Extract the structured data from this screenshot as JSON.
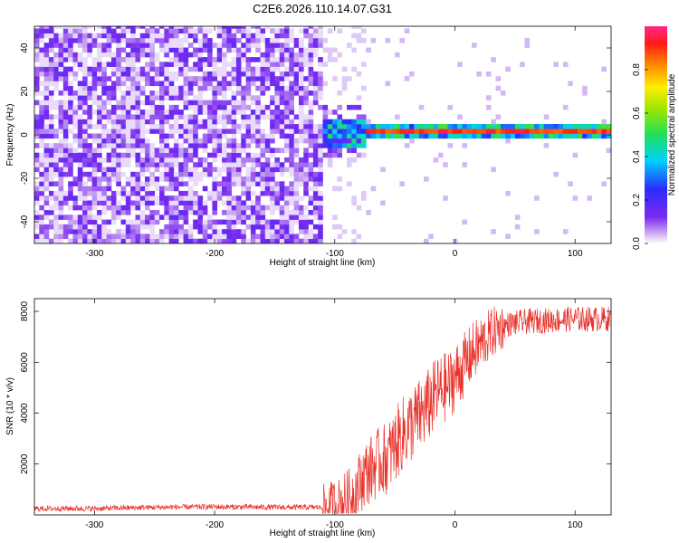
{
  "figure": {
    "title": "C2E6.2026.110.14.07.G31"
  },
  "chart_data": [
    {
      "type": "heatmap",
      "xlabel": "Height of straight line (km)",
      "ylabel": "Frequency (Hz)",
      "xlim": [
        -350,
        130
      ],
      "ylim": [
        -50,
        50
      ],
      "xticks": [
        -300,
        -200,
        -100,
        0,
        100
      ],
      "yticks": [
        -40,
        -20,
        0,
        20,
        40
      ],
      "colorbar": {
        "label": "Normalized spectral amplitude",
        "range": [
          0,
          1
        ],
        "ticks": [
          0.0,
          0.2,
          0.4,
          0.6,
          0.8
        ],
        "tick_labels": [
          "0.0",
          "0.2",
          "0.4",
          "0.6",
          "0.8"
        ]
      },
      "description_regions": [
        {
          "x_from": -350,
          "x_to": -110,
          "content": "broadband noise",
          "amplitude": 0.1
        },
        {
          "x_from": -110,
          "x_to": -75,
          "content": "signal emerging near 0 Hz",
          "amplitude": 0.4
        },
        {
          "x_from": -75,
          "x_to": 130,
          "content": "strong tone at ~0 Hz",
          "amplitude": 1.0
        }
      ]
    },
    {
      "type": "line",
      "xlabel": "Height of straight line (km)",
      "ylabel": "SNR (10 * v/v)",
      "xlim": [
        -350,
        130
      ],
      "ylim": [
        0,
        8500
      ],
      "xticks": [
        -300,
        -200,
        -100,
        0,
        100
      ],
      "yticks": [
        2000,
        4000,
        6000,
        8000
      ],
      "series": [
        {
          "name": "SNR",
          "color": "#e8312a",
          "x": [
            -350,
            -300,
            -250,
            -200,
            -150,
            -110,
            -95,
            -85,
            -75,
            -65,
            -55,
            -45,
            -35,
            -25,
            -15,
            -5,
            5,
            15,
            25,
            35,
            45,
            60,
            80,
            100,
            130
          ],
          "y": [
            250,
            250,
            300,
            320,
            300,
            300,
            450,
            800,
            1600,
            2000,
            2300,
            3100,
            3600,
            4100,
            4800,
            5100,
            5700,
            6400,
            6900,
            7300,
            7500,
            7600,
            7650,
            7700,
            7700
          ]
        }
      ]
    }
  ]
}
